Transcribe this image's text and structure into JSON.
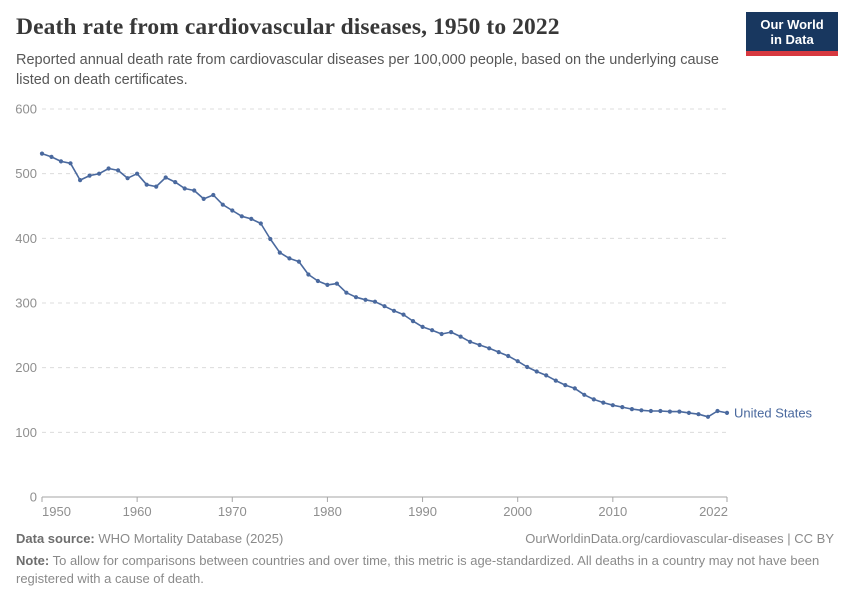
{
  "header": {
    "title": "Death rate from cardiovascular diseases, 1950 to 2022",
    "subtitle": "Reported annual death rate from cardiovascular diseases per 100,000 people, based on the underlying cause listed on death certificates."
  },
  "logo": {
    "line1": "Our World",
    "line2": "in Data",
    "bg": "#18375f",
    "stripe": "#d7383f"
  },
  "footer": {
    "data_source_label": "Data source:",
    "data_source_text": " WHO Mortality Database (2025)",
    "link": "OurWorldinData.org/cardiovascular-diseases | CC BY",
    "note_label": "Note:",
    "note_text": " To allow for comparisons between countries and over time, this metric is age-standardized. All deaths in a country may not have been registered with a cause of death."
  },
  "chart_data": {
    "type": "line",
    "title": "Death rate from cardiovascular diseases, 1950 to 2022",
    "xlabel": "",
    "ylabel": "",
    "xlim": [
      1950,
      2022
    ],
    "ylim": [
      0,
      600
    ],
    "xticks": [
      1950,
      1960,
      1970,
      1980,
      1990,
      2000,
      2010,
      2022
    ],
    "yticks": [
      0,
      100,
      200,
      300,
      400,
      500,
      600
    ],
    "grid": "horizontal-dashed",
    "legend_position": "end-of-line-label",
    "x": [
      1950,
      1951,
      1952,
      1953,
      1954,
      1955,
      1956,
      1957,
      1958,
      1959,
      1960,
      1961,
      1962,
      1963,
      1964,
      1965,
      1966,
      1967,
      1968,
      1969,
      1970,
      1971,
      1972,
      1973,
      1974,
      1975,
      1976,
      1977,
      1978,
      1979,
      1980,
      1981,
      1982,
      1983,
      1984,
      1985,
      1986,
      1987,
      1988,
      1989,
      1990,
      1991,
      1992,
      1993,
      1994,
      1995,
      1996,
      1997,
      1998,
      1999,
      2000,
      2001,
      2002,
      2003,
      2004,
      2005,
      2006,
      2007,
      2008,
      2009,
      2010,
      2011,
      2012,
      2013,
      2014,
      2015,
      2016,
      2017,
      2018,
      2019,
      2020,
      2021,
      2022
    ],
    "series": [
      {
        "name": "United States",
        "color": "#4A699E",
        "values": [
          531,
          526,
          519,
          516,
          490,
          497,
          500,
          508,
          505,
          493,
          500,
          483,
          480,
          494,
          487,
          477,
          474,
          461,
          467,
          452,
          443,
          434,
          430,
          423,
          399,
          378,
          369,
          364,
          344,
          334,
          328,
          330,
          316,
          309,
          305,
          302,
          295,
          288,
          282,
          272,
          263,
          258,
          252,
          255,
          248,
          240,
          235,
          230,
          224,
          218,
          210,
          201,
          194,
          188,
          180,
          173,
          168,
          158,
          151,
          146,
          142,
          139,
          136,
          134,
          133,
          133,
          132,
          132,
          130,
          128,
          124,
          133,
          130
        ]
      }
    ],
    "colors": {
      "gridline": "#dcdcdc",
      "axis": "#a6a6a6",
      "tick_label": "#8f8f8f"
    }
  }
}
